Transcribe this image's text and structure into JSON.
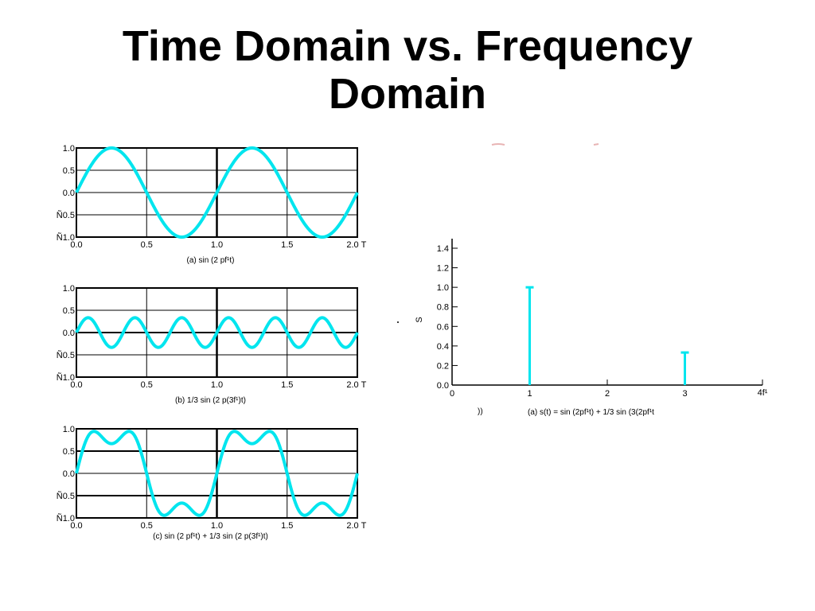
{
  "title_line1": "Time Domain vs. Frequency",
  "title_line2": "Domain",
  "wave_color": "#00e5ee",
  "chart_data": [
    {
      "type": "line",
      "caption": "(a) sin (2 pf¹t)",
      "function": "sin(2*pi*t)",
      "x_ticks": [
        "0.0",
        "0.5",
        "1.0",
        "1.5",
        "2.0"
      ],
      "x_unit": "T",
      "y_ticks": [
        "1.0",
        "0.5",
        "0.0",
        "Ñ0.5",
        "Ñ1.0"
      ],
      "xlim": [
        0,
        2
      ],
      "ylim": [
        -1,
        1
      ]
    },
    {
      "type": "line",
      "caption": "(b) 1/3 sin (2  p(3f¹)t)",
      "function": "(1/3)*sin(2*pi*3*t)",
      "x_ticks": [
        "0.0",
        "0.5",
        "1.0",
        "1.5",
        "2.0"
      ],
      "x_unit": "T",
      "y_ticks": [
        "1.0",
        "0.5",
        "0.0",
        "Ñ0.5",
        "Ñ1.0"
      ],
      "xlim": [
        0,
        2
      ],
      "ylim": [
        -1,
        1
      ]
    },
    {
      "type": "line",
      "caption": "(c) sin (2 pf¹t) + 1/3 sin (2  p(3f¹)t)",
      "function": "sin(2*pi*t) + (1/3)*sin(2*pi*3*t)",
      "x_ticks": [
        "0.0",
        "0.5",
        "1.0",
        "1.5",
        "2.0"
      ],
      "x_unit": "T",
      "y_ticks": [
        "1.0",
        "0.5",
        "0.0",
        "Ñ0.5",
        "Ñ1.0"
      ],
      "xlim": [
        0,
        2
      ],
      "ylim": [
        -1,
        1
      ]
    },
    {
      "type": "bar",
      "x": [
        1,
        3
      ],
      "values": [
        1.0,
        0.333
      ],
      "x_ticks": [
        "0",
        "1",
        "2",
        "3"
      ],
      "x_unit": "4f¹",
      "y_ticks": [
        "1.4",
        "1.2",
        "1.0",
        "0.8",
        "0.6",
        "0.4",
        "0.2",
        "0.0"
      ],
      "ylabel": "S",
      "xlim": [
        0,
        4
      ],
      "ylim": [
        0,
        1.4
      ],
      "caption_prefix": "))",
      "caption": "(a) s(t) = sin (2pf¹t) + 1/3 sin (3(2pf¹t"
    }
  ]
}
